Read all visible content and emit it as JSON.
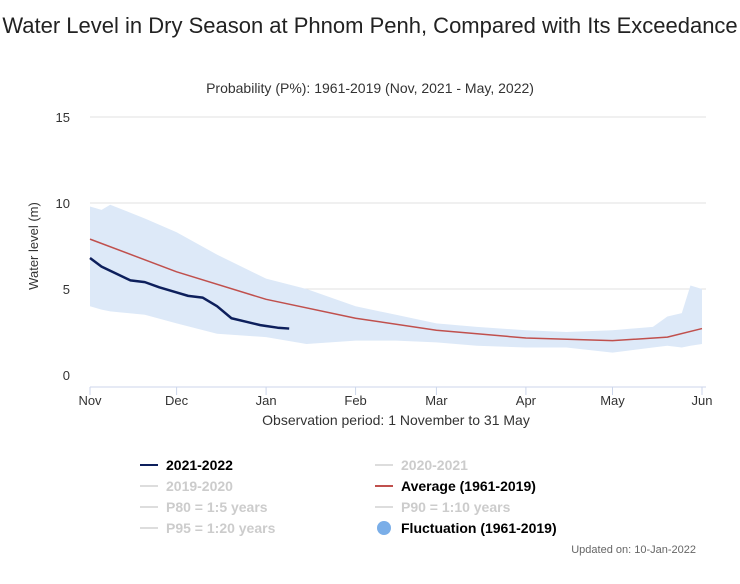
{
  "chart_data": {
    "type": "line",
    "title": "Water Level in Dry Season at Phnom Penh, Compared with Its Exceedance",
    "subtitle": "Probability (P%): 1961-2019 (Nov, 2021 - May, 2022)",
    "xlabel": "Observation period: 1 November to 31 May",
    "ylabel": "Water level (m)",
    "ylim": [
      0,
      15
    ],
    "yticks": [
      "0",
      "5",
      "10",
      "15"
    ],
    "xlim": [
      "2021-11-01",
      "2022-06-01"
    ],
    "xticks": [
      {
        "date": "2021-11-01",
        "label": "Nov"
      },
      {
        "date": "2021-12-01",
        "label": "Dec"
      },
      {
        "date": "2022-01-01",
        "label": "Jan"
      },
      {
        "date": "2022-02-01",
        "label": "Feb"
      },
      {
        "date": "2022-03-01",
        "label": "Mar"
      },
      {
        "date": "2022-04-01",
        "label": "Apr"
      },
      {
        "date": "2022-05-01",
        "label": "May"
      },
      {
        "date": "2022-06-01",
        "label": "Jun"
      }
    ],
    "grid": true,
    "legend_position": "bottom",
    "series": [
      {
        "name": "2021-2022",
        "color": "#0d1f5c",
        "visible": true,
        "x": [
          "2021-11-01",
          "2021-11-05",
          "2021-11-10",
          "2021-11-15",
          "2021-11-20",
          "2021-11-25",
          "2021-12-01",
          "2021-12-05",
          "2021-12-10",
          "2021-12-15",
          "2021-12-20",
          "2021-12-25",
          "2021-12-30",
          "2022-01-01",
          "2022-01-05",
          "2022-01-09"
        ],
        "y": [
          6.8,
          6.3,
          5.9,
          5.5,
          5.4,
          5.1,
          4.8,
          4.6,
          4.5,
          4.0,
          3.3,
          3.1,
          2.9,
          2.85,
          2.75,
          2.7
        ]
      },
      {
        "name": "2020-2021",
        "color": "#cccccc",
        "visible": false
      },
      {
        "name": "2019-2020",
        "color": "#cccccc",
        "visible": false
      },
      {
        "name": "Average (1961-2019)",
        "color": "#c0504d",
        "visible": true,
        "x": [
          "2021-11-01",
          "2021-12-01",
          "2022-01-01",
          "2022-02-01",
          "2022-03-01",
          "2022-04-01",
          "2022-05-01",
          "2022-05-20",
          "2022-06-01"
        ],
        "y": [
          7.9,
          6.0,
          4.4,
          3.3,
          2.6,
          2.15,
          2.0,
          2.2,
          2.7
        ]
      },
      {
        "name": "P80 = 1:5 years",
        "color": "#cccccc",
        "visible": false
      },
      {
        "name": "P90 = 1:10 years",
        "color": "#cccccc",
        "visible": false
      },
      {
        "name": "P95 = 1:20 years",
        "color": "#cccccc",
        "visible": false
      },
      {
        "name": "Fluctuation (1961-2019)",
        "color": "#7aaee8",
        "fill": "#dde9f8",
        "visible": true,
        "type": "area-range",
        "x": [
          "2021-11-01",
          "2021-11-05",
          "2021-11-08",
          "2021-11-20",
          "2021-12-01",
          "2021-12-15",
          "2022-01-01",
          "2022-01-15",
          "2022-02-01",
          "2022-02-15",
          "2022-03-01",
          "2022-03-15",
          "2022-04-01",
          "2022-04-15",
          "2022-05-01",
          "2022-05-15",
          "2022-05-20",
          "2022-05-25",
          "2022-05-28",
          "2022-06-01"
        ],
        "upper": [
          9.8,
          9.6,
          9.9,
          9.1,
          8.3,
          7.0,
          5.6,
          5.0,
          4.0,
          3.5,
          3.0,
          2.8,
          2.6,
          2.5,
          2.6,
          2.8,
          3.4,
          3.6,
          5.2,
          5.0
        ],
        "lower": [
          4.0,
          3.8,
          3.7,
          3.5,
          3.0,
          2.4,
          2.2,
          1.8,
          2.0,
          2.0,
          1.9,
          1.7,
          1.6,
          1.6,
          1.3,
          1.6,
          1.7,
          1.6,
          1.7,
          1.8
        ]
      }
    ]
  },
  "updated": "Updated on: 10-Jan-2022"
}
